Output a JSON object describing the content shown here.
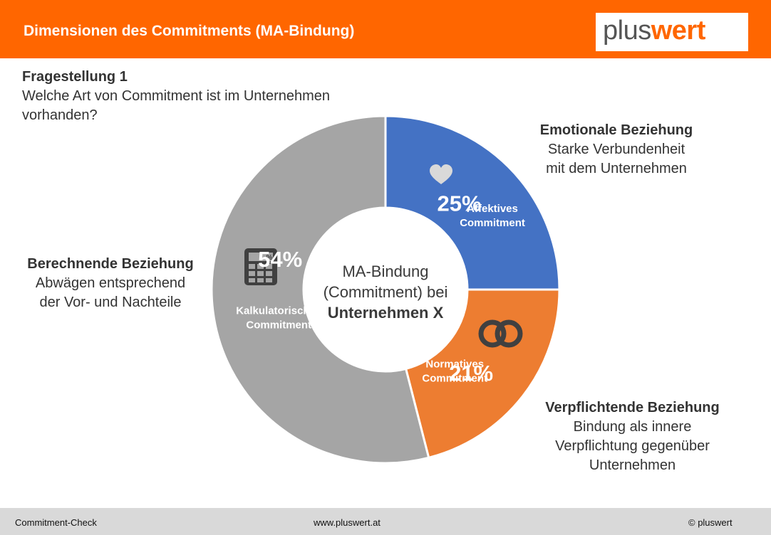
{
  "header": {
    "title": "Dimensionen des Commitments (MA-Bindung)"
  },
  "logo": {
    "plus": "plus",
    "wert": "wert"
  },
  "question": {
    "title": "Fragestellung 1",
    "text": "Welche Art von Commitment ist im Unternehmen vorhanden?"
  },
  "center": {
    "line1": "MA-Bindung",
    "line2": "(Commitment) bei",
    "line3": "Unternehmen X"
  },
  "annotations": {
    "emotional": {
      "title": "Emotionale Beziehung",
      "line1": "Starke Verbundenheit",
      "line2": "mit dem Unternehmen"
    },
    "berechnend": {
      "title": "Berechnende Beziehung",
      "line1": "Abwägen entsprechend",
      "line2": "der Vor- und Nachteile"
    },
    "verpflichtend": {
      "title": "Verpflichtende Beziehung",
      "line1": "Bindung als innere",
      "line2": "Verpflichtung gegenüber",
      "line3": "Unternehmen"
    }
  },
  "chart_data": {
    "type": "pie",
    "donut": true,
    "slices": [
      {
        "label": "Affektives Commitment",
        "value": 25,
        "value_label": "25%",
        "color": "#4472c4",
        "icon": "heart-icon"
      },
      {
        "label": "Normatives Commitment",
        "value": 21,
        "value_label": "21%",
        "color": "#ed7d31",
        "icon": "rings-icon"
      },
      {
        "label": "Kalkulatorisches Commitment",
        "value": 54,
        "value_label": "54%",
        "color": "#a5a5a5",
        "icon": "calculator-icon"
      }
    ]
  },
  "footer": {
    "left": "Commitment-Check",
    "center": "www.pluswert.at",
    "right": "© pluswert"
  }
}
